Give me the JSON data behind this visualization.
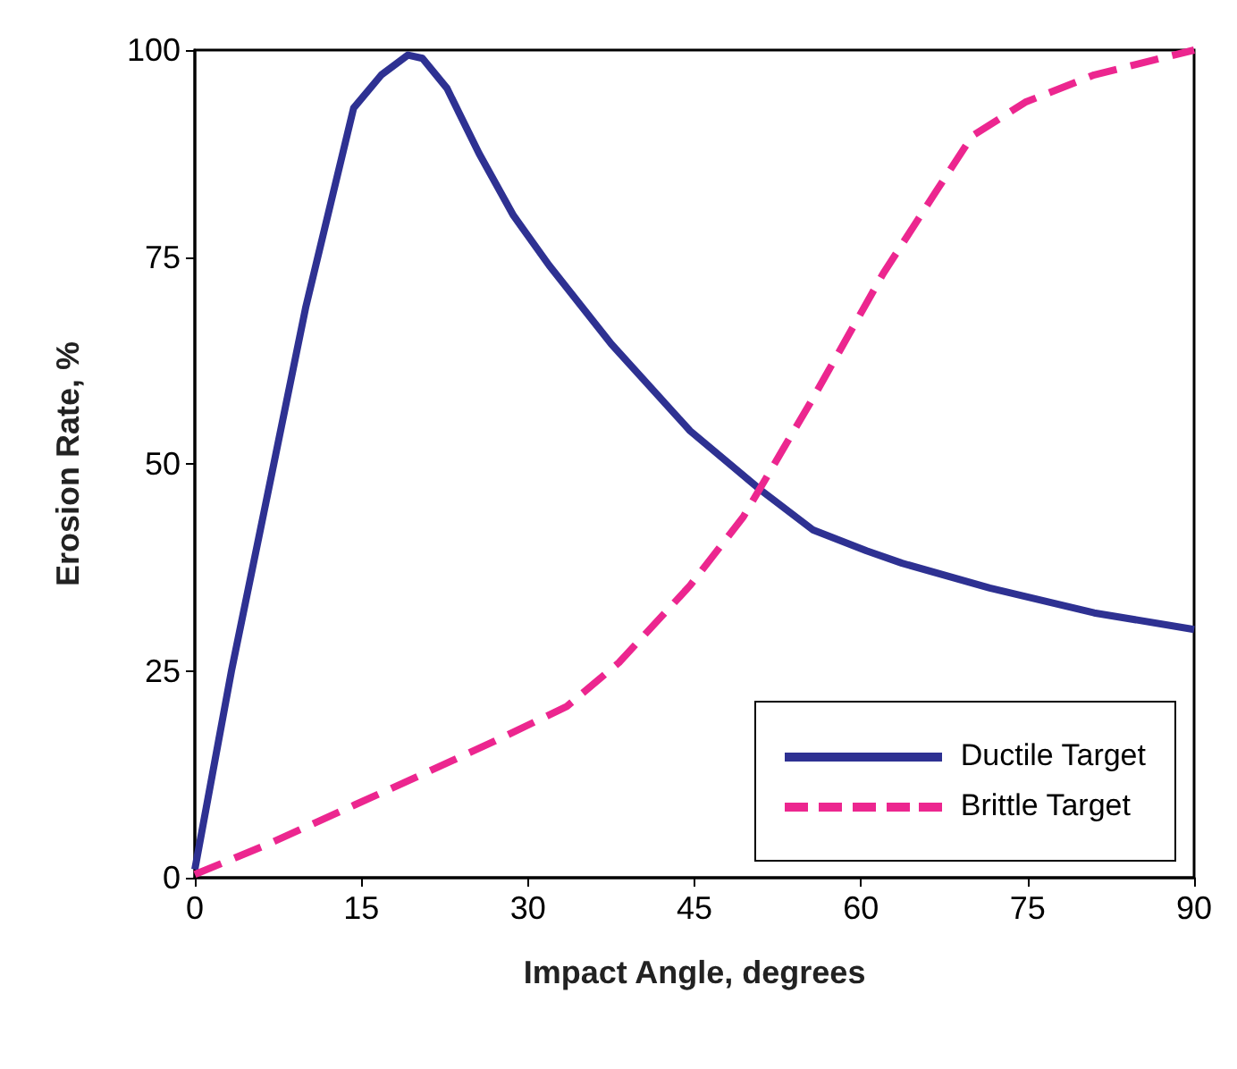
{
  "chart_data": {
    "type": "line",
    "xlabel": "Impact Angle, degrees",
    "ylabel": "Erosion Rate, %",
    "xlim": [
      0,
      90
    ],
    "xticks": [
      0,
      15,
      30,
      45,
      60,
      75,
      90
    ],
    "ylim": [
      0,
      100
    ],
    "yticks": [
      0,
      25,
      50,
      75,
      100
    ],
    "legend": "bottom right",
    "marker": "none",
    "series": [
      {
        "name": "Ductile Target",
        "color": "#2e3192",
        "line_style": "solid",
        "x": [
          0,
          3.3,
          6.2,
          10,
          14.3,
          16.8,
          19.2,
          20.5,
          22.7,
          25.6,
          28.7,
          31.9,
          37.5,
          44.6,
          51,
          55.7,
          60.5,
          63.7,
          71.6,
          81,
          90
        ],
        "values": [
          1,
          25,
          44,
          69,
          93,
          97,
          99.4,
          99,
          95.4,
          87.5,
          80,
          74,
          64.5,
          54,
          46.8,
          42,
          39.5,
          38,
          35,
          32,
          30
        ]
      },
      {
        "name": "Brittle Target",
        "color": "#ec268f",
        "line_style": "dashed",
        "x": [
          0,
          6.5,
          14.4,
          19.2,
          27,
          33.5,
          38.2,
          44.6,
          49.4,
          55.7,
          62,
          66.8,
          70,
          74.8,
          81,
          90
        ],
        "values": [
          0.4,
          4,
          8.8,
          11.7,
          16.5,
          20.7,
          26,
          35.3,
          43.6,
          58,
          73,
          83,
          89.6,
          93.7,
          97,
          100
        ]
      }
    ]
  }
}
